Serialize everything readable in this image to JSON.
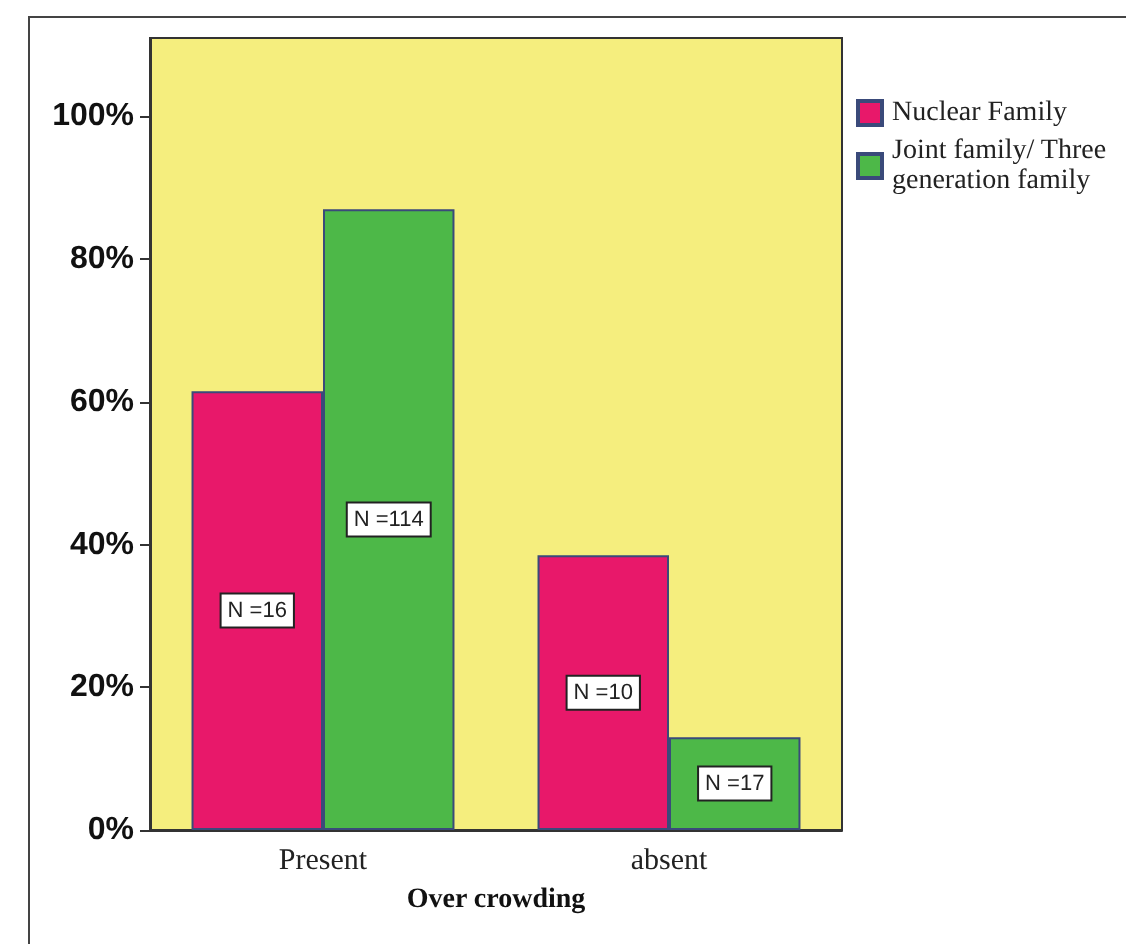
{
  "chart_data": {
    "type": "bar",
    "xlabel": "Over crowding",
    "categories": [
      "Present",
      "absent"
    ],
    "series": [
      {
        "name": "Nuclear Family",
        "color": "#e8186a",
        "values": [
          61.5,
          38.5
        ]
      },
      {
        "name": "Joint family/ Three generation family",
        "color": "#4db848",
        "values": [
          87,
          13
        ]
      }
    ],
    "annotations": [
      {
        "text": "N =16",
        "x": "Present",
        "y": 30.75
      },
      {
        "text": "N =114",
        "x": "Present",
        "y": 43.5
      },
      {
        "text": "N =10",
        "x": "absent",
        "y": 19.25
      },
      {
        "text": "N =17",
        "x": "absent",
        "y": 6.5
      }
    ],
    "ylim": [
      0,
      111
    ],
    "yticks": [
      {
        "value": 0,
        "label": "0%"
      },
      {
        "value": 20,
        "label": "20%"
      },
      {
        "value": 40,
        "label": "40%"
      },
      {
        "value": 60,
        "label": "60%"
      },
      {
        "value": 80,
        "label": "80%"
      },
      {
        "value": 100,
        "label": "100%"
      }
    ],
    "grid": false,
    "legend": "right"
  }
}
